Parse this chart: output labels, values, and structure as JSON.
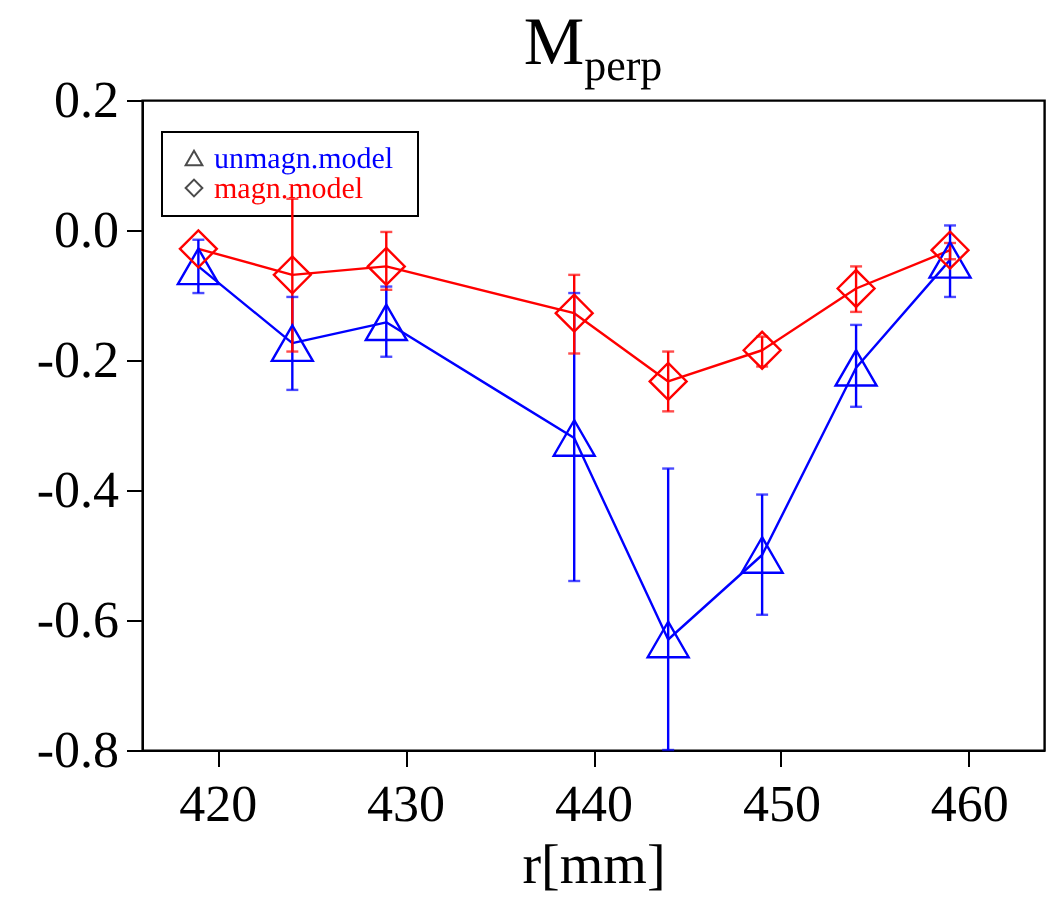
{
  "chart_data": {
    "type": "line",
    "title": "M$_{perp}$",
    "xlabel": "r[mm]",
    "x": [
      419,
      424,
      429,
      439,
      444,
      449,
      454,
      459
    ],
    "series": [
      {
        "name": "unmagn.model",
        "color": "#0000ff",
        "marker": "triangle",
        "values": [
          -0.056,
          -0.174,
          -0.142,
          -0.32,
          -0.63,
          -0.5,
          -0.212,
          -0.046
        ],
        "errors": [
          [
            -0.097,
            -0.015
          ],
          [
            -0.246,
            -0.103
          ],
          [
            -0.195,
            -0.087
          ],
          [
            -0.54,
            -0.097
          ],
          [
            -0.8,
            -0.367
          ],
          [
            -0.592,
            -0.407
          ],
          [
            -0.272,
            -0.146
          ],
          [
            -0.103,
            0.007
          ]
        ]
      },
      {
        "name": "magn.model",
        "color": "#ff0000",
        "marker": "diamond",
        "values": [
          -0.029,
          -0.069,
          -0.056,
          -0.128,
          -0.233,
          -0.185,
          -0.09,
          -0.031
        ],
        "errors": [
          null,
          [
            -0.187,
            0.048
          ],
          [
            -0.092,
            -0.003
          ],
          [
            -0.19,
            -0.069
          ],
          [
            -0.279,
            -0.187
          ],
          [
            -0.21,
            -0.164
          ],
          [
            -0.126,
            -0.056
          ],
          [
            -0.045,
            -0.02
          ]
        ]
      }
    ],
    "xlim": [
      416,
      464
    ],
    "xticks": [
      420,
      430,
      440,
      450,
      460
    ],
    "ylim": [
      -0.8,
      0.2
    ],
    "yticks": [
      {
        "value": -0.8,
        "label": "-0.8"
      },
      {
        "value": -0.6,
        "label": "-0.6"
      },
      {
        "value": -0.4,
        "label": "-0.4"
      },
      {
        "value": -0.2,
        "label": "-0.2"
      },
      {
        "value": 0,
        "label": "0.0"
      },
      {
        "value": 0.2,
        "label": "0.2"
      }
    ],
    "legend": "top left",
    "grid": false
  }
}
